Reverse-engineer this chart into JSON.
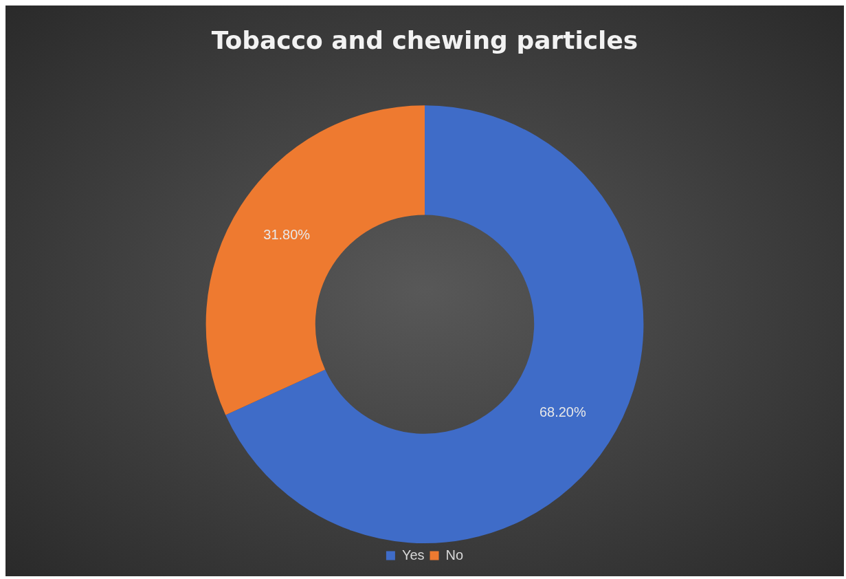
{
  "chart_data": {
    "type": "donut",
    "title": "Tobacco and chewing particles",
    "categories": [
      "Yes",
      "No"
    ],
    "values": [
      68.2,
      31.8
    ],
    "colors": [
      "#3f6cc8",
      "#ee7a30"
    ],
    "value_labels": [
      "68.20%",
      "31.80%"
    ],
    "legend": "bottom"
  }
}
